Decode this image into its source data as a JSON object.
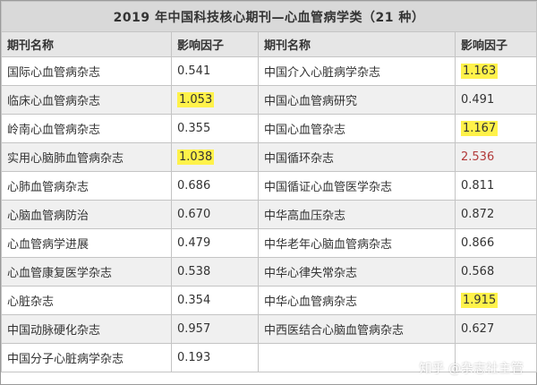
{
  "title": "2019 年中国科技核心期刊—心血管病学类（21 种）",
  "headers": {
    "name_left": "期刊名称",
    "factor_left": "影响因子",
    "name_right": "期刊名称",
    "factor_right": "影响因子"
  },
  "rows": [
    {
      "left_name": "国际心血管病杂志",
      "left_value": "0.541",
      "left_highlight": false,
      "right_name": "中国介入心脏病学杂志",
      "right_value": "1.163",
      "right_highlight": true
    },
    {
      "left_name": "临床心血管病杂志",
      "left_value": "1.053",
      "left_highlight": true,
      "right_name": "中国心血管病研究",
      "right_value": "0.491",
      "right_highlight": false
    },
    {
      "left_name": "岭南心血管病杂志",
      "left_value": "0.355",
      "left_highlight": false,
      "right_name": "中国心血管杂志",
      "right_value": "1.167",
      "right_highlight": true
    },
    {
      "left_name": "实用心脑肺血管病杂志",
      "left_value": "1.038",
      "left_highlight": true,
      "right_name": "中国循环杂志",
      "right_value": "2.536",
      "right_highlight": false
    },
    {
      "left_name": "心肺血管病杂志",
      "left_value": "0.686",
      "left_highlight": false,
      "right_name": "中国循证心血管医学杂志",
      "right_value": "0.811",
      "right_highlight": false
    },
    {
      "left_name": "心脑血管病防治",
      "left_value": "0.670",
      "left_highlight": false,
      "right_name": "中华高血压杂志",
      "right_value": "0.872",
      "right_highlight": false
    },
    {
      "left_name": "心血管病学进展",
      "left_value": "0.479",
      "left_highlight": false,
      "right_name": "中华老年心脑血管病杂志",
      "right_value": "0.866",
      "right_highlight": false
    },
    {
      "left_name": "心血管康复医学杂志",
      "left_value": "0.538",
      "left_highlight": false,
      "right_name": "中华心律失常杂志",
      "right_value": "0.568",
      "right_highlight": false
    },
    {
      "left_name": "心脏杂志",
      "left_value": "0.354",
      "left_highlight": false,
      "right_name": "中华心血管病杂志",
      "right_value": "1.915",
      "right_highlight": true
    },
    {
      "left_name": "中国动脉硬化杂志",
      "left_value": "0.957",
      "left_highlight": false,
      "right_name": "中西医结合心脑血管病杂志",
      "right_value": "0.627",
      "right_highlight": false
    },
    {
      "left_name": "中国分子心脏病学杂志",
      "left_value": "0.193",
      "left_highlight": false,
      "right_name": "",
      "right_value": "",
      "right_highlight": false
    }
  ],
  "colors": {
    "highlight": "#fff24a",
    "emphasis_red": "#b23a3a",
    "header_bg": "#d9d9d9",
    "stripe_bg": "#f0f0f0"
  },
  "watermark": "知乎 @杂志社主管"
}
